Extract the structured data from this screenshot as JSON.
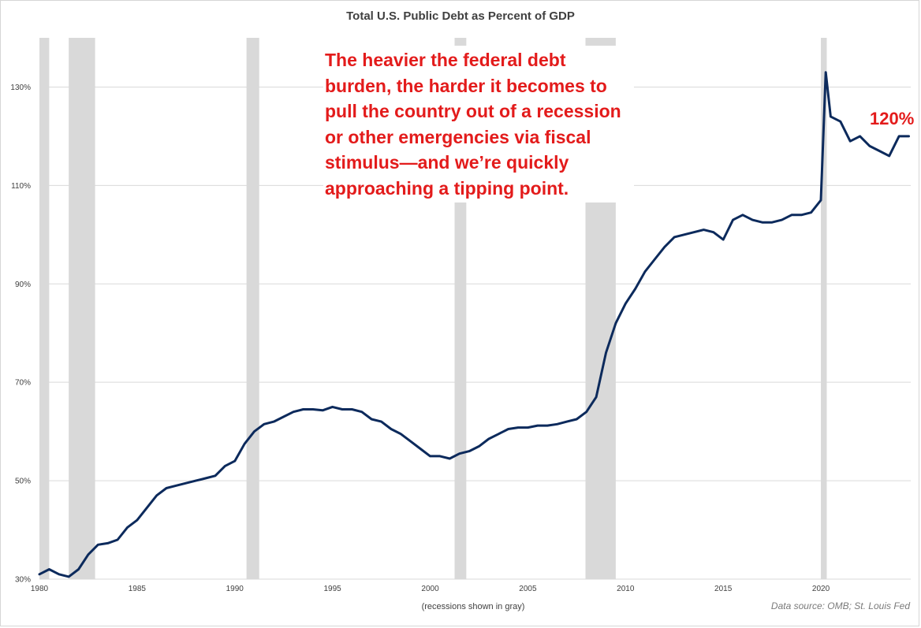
{
  "title": "Total U.S. Public Debt as Percent of GDP",
  "annotation": "The heavier the federal debt burden, the harder it becomes to pull the country out of a recession or other emergencies via fiscal stimulus—and we’re quickly approaching a tipping point.",
  "callout": "120%",
  "xlabel": "(recessions shown in gray)",
  "source": "Data source: OMB; St. Louis Fed",
  "colors": {
    "line": "#0c2a5c",
    "recession": "#d9d9d9",
    "grid": "#d9d9d9",
    "annotation": "#e31b1b"
  },
  "chart_data": {
    "type": "line",
    "title": "Total U.S. Public Debt as Percent of GDP",
    "xlabel": "(recessions shown in gray)",
    "ylabel": "",
    "xlim": [
      1980,
      2024.6
    ],
    "ylim": [
      30,
      140
    ],
    "xticks": [
      1980,
      1985,
      1990,
      1995,
      2000,
      2005,
      2010,
      2015,
      2020
    ],
    "yticks": [
      30,
      50,
      70,
      90,
      110,
      130
    ],
    "ytick_labels": [
      "30%",
      "50%",
      "70%",
      "90%",
      "110%",
      "130%"
    ],
    "grid": true,
    "recessions": [
      {
        "start": 1980.0,
        "end": 1980.5,
        "label": ""
      },
      {
        "start": 1981.5,
        "end": 1982.85,
        "label": ""
      },
      {
        "start": 1990.6,
        "end": 1991.25,
        "label": ""
      },
      {
        "start": 2001.25,
        "end": 2001.85,
        "label": ""
      },
      {
        "start": 2007.95,
        "end": 2009.5,
        "label": ""
      },
      {
        "start": 2020.0,
        "end": 2020.3,
        "label": ""
      }
    ],
    "series": [
      {
        "name": "",
        "x": [
          1980,
          1980.5,
          1981,
          1981.5,
          1982,
          1982.5,
          1983,
          1983.5,
          1984,
          1984.5,
          1985,
          1985.5,
          1986,
          1986.5,
          1987,
          1987.5,
          1988,
          1988.5,
          1989,
          1989.5,
          1990,
          1990.5,
          1991,
          1991.5,
          1992,
          1992.5,
          1993,
          1993.5,
          1994,
          1994.5,
          1995,
          1995.5,
          1996,
          1996.5,
          1997,
          1997.5,
          1998,
          1998.5,
          1999,
          1999.5,
          2000,
          2000.5,
          2001,
          2001.5,
          2002,
          2002.5,
          2003,
          2003.5,
          2004,
          2004.5,
          2005,
          2005.5,
          2006,
          2006.5,
          2007,
          2007.5,
          2008,
          2008.5,
          2009,
          2009.5,
          2010,
          2010.5,
          2011,
          2011.5,
          2012,
          2012.5,
          2013,
          2013.5,
          2014,
          2014.5,
          2015,
          2015.5,
          2016,
          2016.5,
          2017,
          2017.5,
          2018,
          2018.5,
          2019,
          2019.5,
          2020,
          2020.25,
          2020.5,
          2021,
          2021.5,
          2022,
          2022.5,
          2023,
          2023.5,
          2024,
          2024.5
        ],
        "values": [
          31,
          32,
          31,
          30.5,
          32,
          35,
          37,
          37.3,
          38,
          40.5,
          42,
          44.5,
          47,
          48.5,
          49,
          49.5,
          50,
          50.5,
          51,
          53,
          54,
          57.5,
          60,
          61.5,
          62,
          63,
          64,
          64.5,
          64.5,
          64.3,
          65,
          64.5,
          64.5,
          64,
          62.5,
          62,
          60.5,
          59.5,
          58,
          56.5,
          55,
          55,
          54.5,
          55.5,
          56,
          57,
          58.5,
          59.5,
          60.5,
          60.8,
          60.8,
          61.2,
          61.2,
          61.5,
          62,
          62.5,
          64,
          67,
          76,
          82,
          86,
          89,
          92.5,
          95,
          97.5,
          99.5,
          100,
          100.5,
          101,
          100.5,
          99,
          103,
          104,
          103,
          102.5,
          102.5,
          103,
          104,
          104,
          104.5,
          107,
          133,
          124,
          123,
          119,
          120,
          118,
          117,
          116,
          120,
          120
        ]
      }
    ]
  }
}
